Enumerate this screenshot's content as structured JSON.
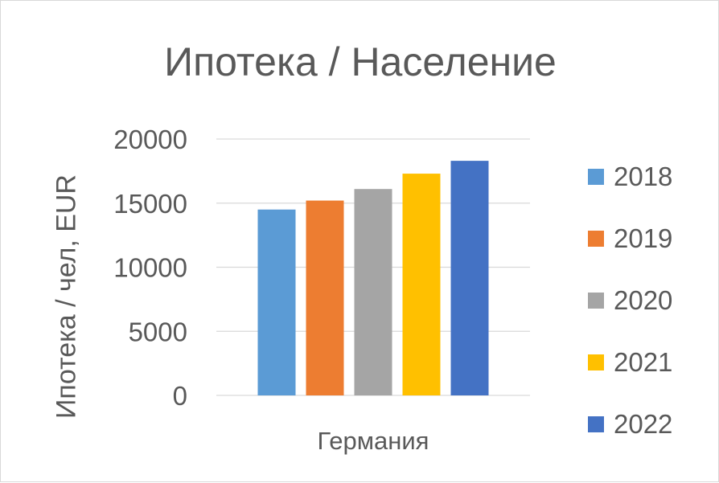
{
  "chart_data": {
    "type": "bar",
    "title": "Ипотека / Население",
    "ylabel": "Ипотека / чел, EUR",
    "xlabel": "",
    "categories": [
      "Германия"
    ],
    "series": [
      {
        "name": "2018",
        "values": [
          14500
        ],
        "color": "#5B9BD5"
      },
      {
        "name": "2019",
        "values": [
          15200
        ],
        "color": "#ED7D31"
      },
      {
        "name": "2020",
        "values": [
          16100
        ],
        "color": "#A5A5A5"
      },
      {
        "name": "2021",
        "values": [
          17300
        ],
        "color": "#FFC000"
      },
      {
        "name": "2022",
        "values": [
          18300
        ],
        "color": "#4472C4"
      }
    ],
    "ylim": [
      0,
      20000
    ],
    "yticks": [
      "0",
      "5000",
      "10000",
      "15000",
      "20000"
    ],
    "grid": true,
    "legend_position": "right",
    "gridline_color": "#d9d9d9",
    "text_color": "#595959"
  }
}
